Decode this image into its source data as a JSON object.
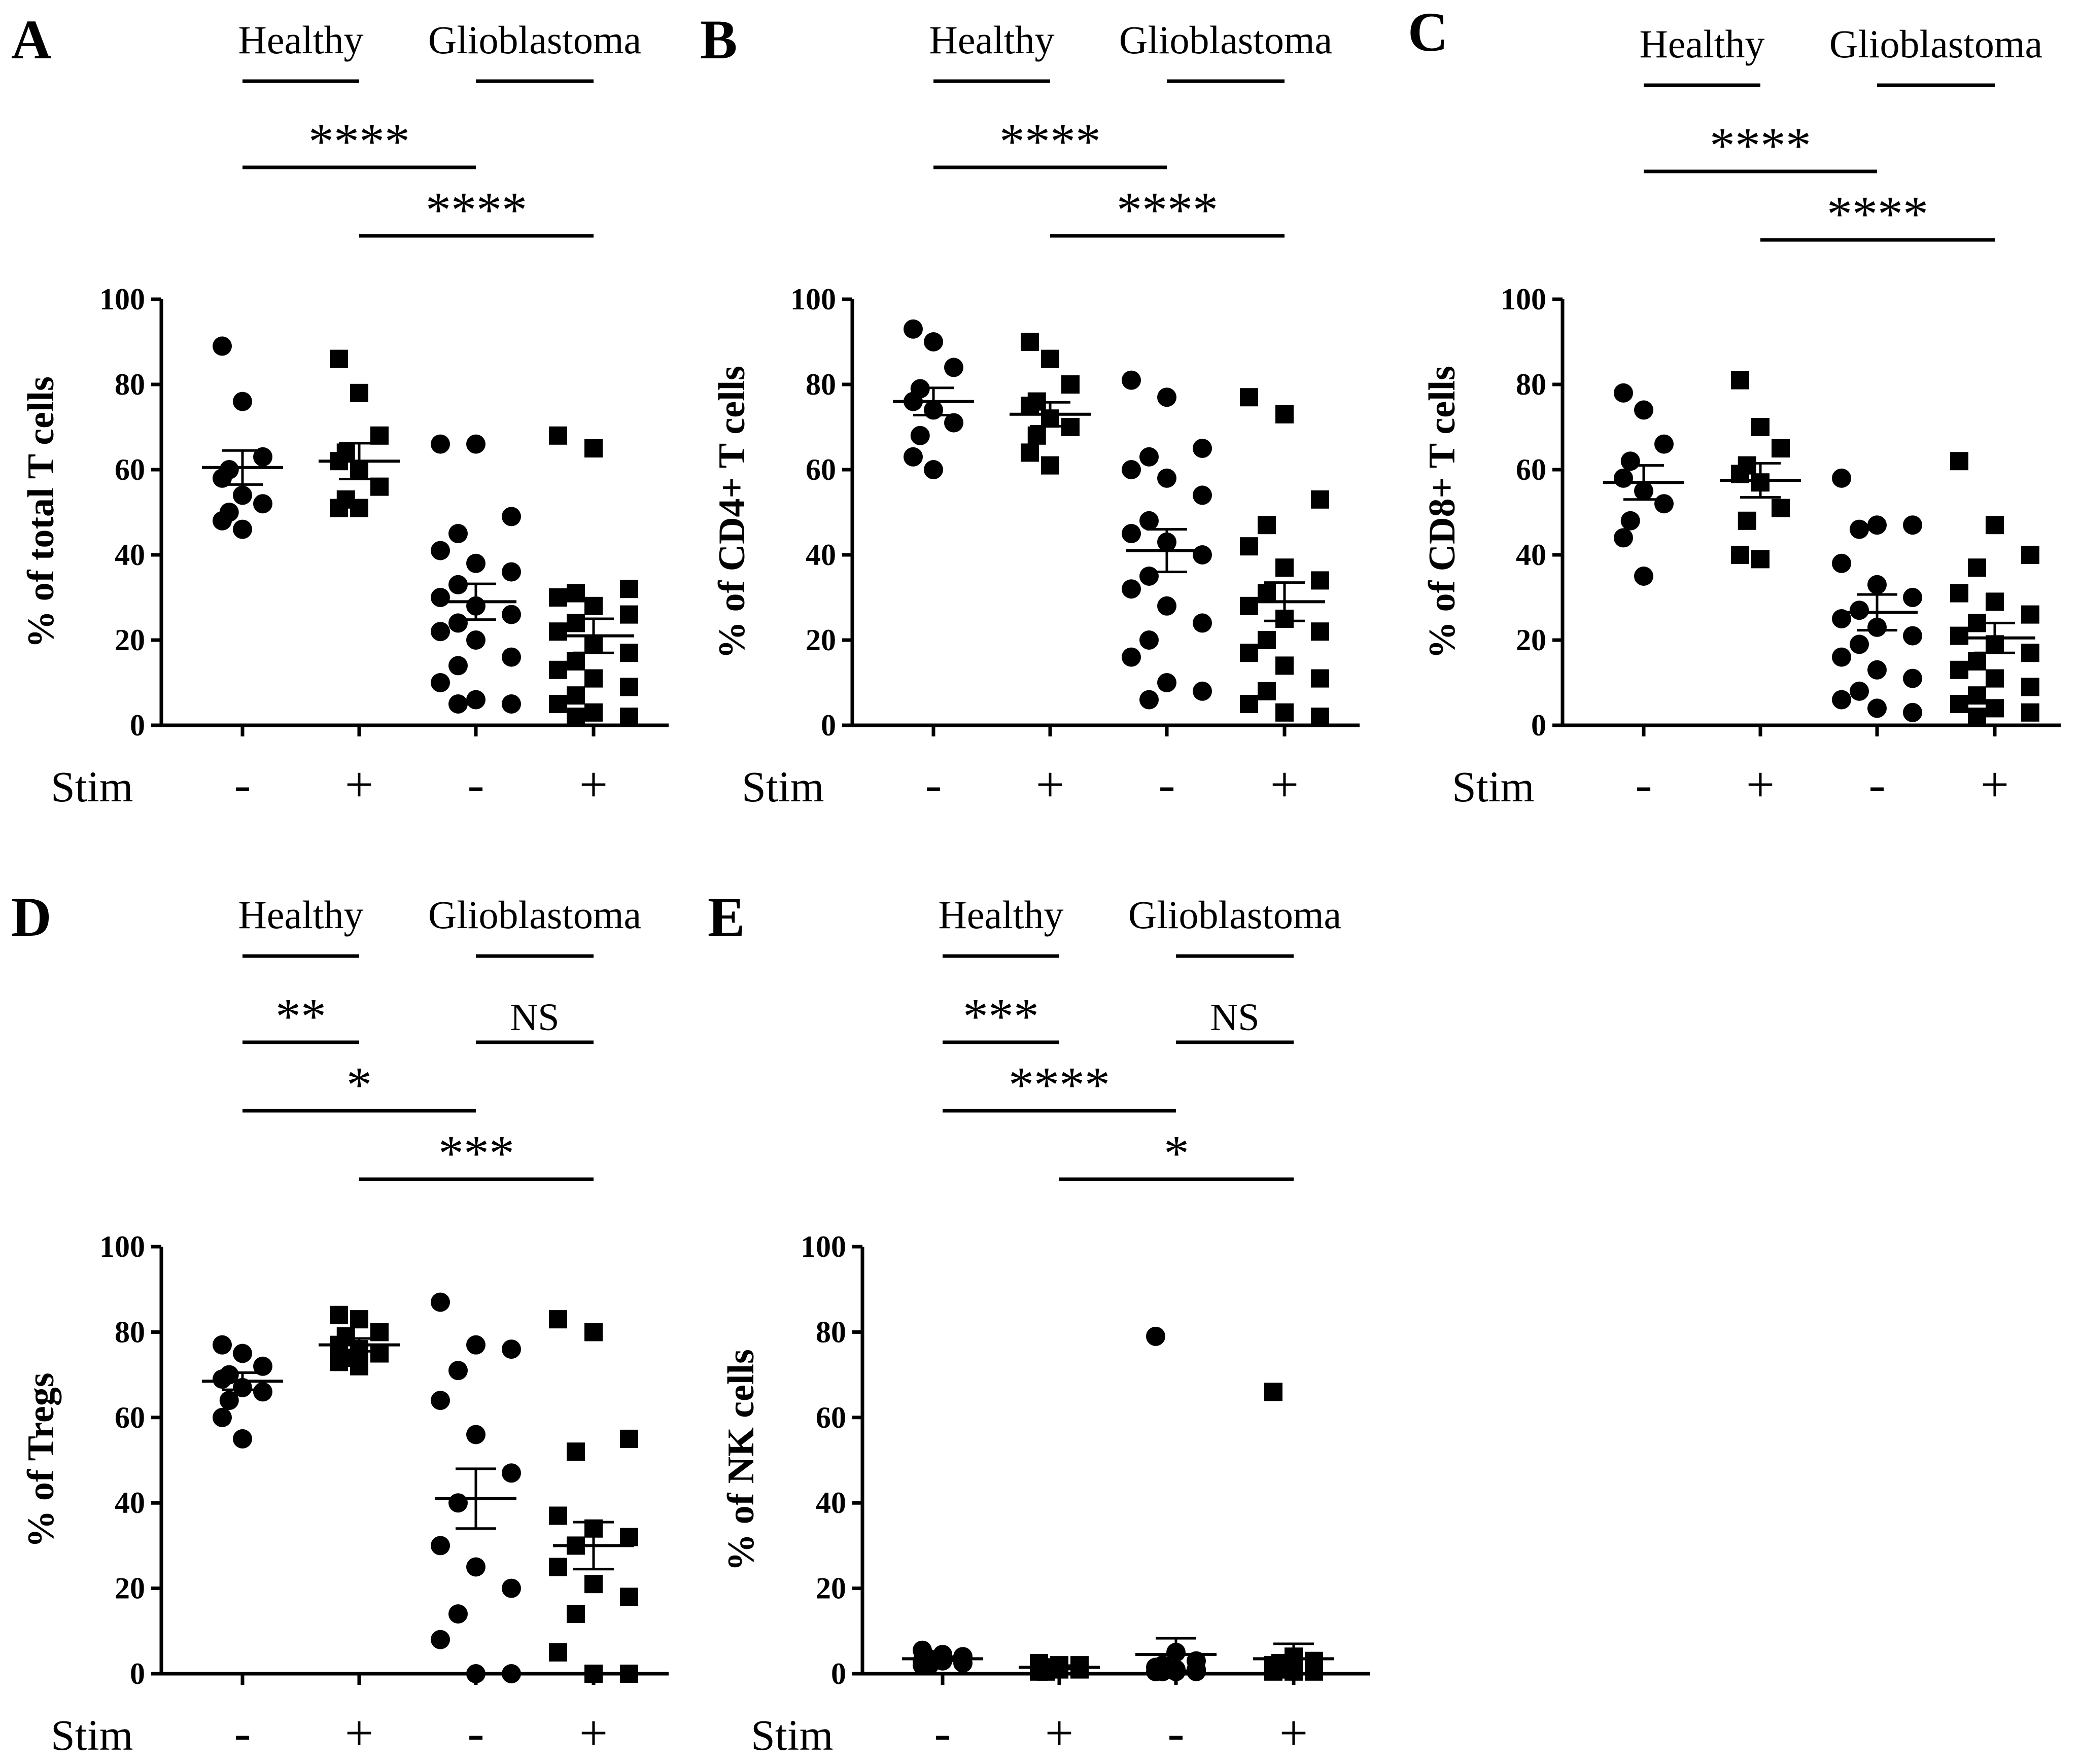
{
  "figure": {
    "y_ticks": [
      "0",
      "20",
      "40",
      "60",
      "80",
      "100"
    ],
    "stim_label": "Stim",
    "stim_values": [
      "-",
      "+",
      "-",
      "+"
    ],
    "group_labels": [
      "Healthy",
      "Glioblastoma"
    ]
  },
  "chart_data": [
    {
      "panel": "A",
      "type": "scatter",
      "ylabel": "% of total T cells",
      "ylim": [
        0,
        100
      ],
      "categories": [
        "Healthy -",
        "Healthy +",
        "Glioblastoma -",
        "Glioblastoma +"
      ],
      "comparisons": [
        {
          "label": "****",
          "from": 0,
          "to": 2
        },
        {
          "label": "****",
          "from": 1,
          "to": 3
        }
      ],
      "series": [
        {
          "name": "Healthy, Stim -",
          "marker": "circle",
          "mean": 60.5,
          "sem": 4.0,
          "values": [
            89,
            76,
            63,
            60,
            58,
            54,
            52,
            50,
            48,
            46
          ]
        },
        {
          "name": "Healthy, Stim +",
          "marker": "square",
          "mean": 62,
          "sem": 4.2,
          "values": [
            86,
            78,
            68,
            64,
            62,
            60,
            56,
            53,
            51,
            51
          ]
        },
        {
          "name": "Glioblastoma, Stim -",
          "marker": "circle",
          "mean": 29,
          "sem": 4.2,
          "values": [
            66,
            66,
            49,
            45,
            41,
            38,
            36,
            33,
            30,
            28,
            26,
            24,
            22,
            20,
            16,
            14,
            10,
            6,
            5,
            5
          ]
        },
        {
          "name": "Glioblastoma, Stim +",
          "marker": "square",
          "mean": 21,
          "sem": 4.0,
          "values": [
            68,
            65,
            32,
            31,
            30,
            28,
            26,
            24,
            22,
            19,
            17,
            15,
            13,
            11,
            9,
            7,
            5,
            3,
            2,
            2
          ]
        }
      ]
    },
    {
      "panel": "B",
      "type": "scatter",
      "ylabel": "% of CD4+ T cells",
      "ylim": [
        0,
        100
      ],
      "categories": [
        "Healthy -",
        "Healthy +",
        "Glioblastoma -",
        "Glioblastoma +"
      ],
      "comparisons": [
        {
          "label": "****",
          "from": 0,
          "to": 2
        },
        {
          "label": "****",
          "from": 1,
          "to": 3
        }
      ],
      "series": [
        {
          "name": "Healthy, Stim -",
          "marker": "circle",
          "mean": 76,
          "sem": 3.2,
          "values": [
            93,
            90,
            84,
            79,
            76,
            74,
            71,
            68,
            63,
            60
          ]
        },
        {
          "name": "Healthy, Stim +",
          "marker": "square",
          "mean": 73,
          "sem": 2.8,
          "values": [
            90,
            86,
            80,
            76,
            75,
            72,
            70,
            68,
            64,
            61
          ]
        },
        {
          "name": "Glioblastoma, Stim -",
          "marker": "circle",
          "mean": 41,
          "sem": 5.0,
          "values": [
            81,
            77,
            65,
            63,
            60,
            58,
            54,
            48,
            45,
            43,
            40,
            35,
            32,
            28,
            24,
            20,
            16,
            10,
            8,
            6
          ]
        },
        {
          "name": "Glioblastoma, Stim +",
          "marker": "square",
          "mean": 29,
          "sem": 4.5,
          "values": [
            77,
            73,
            53,
            47,
            42,
            37,
            34,
            31,
            28,
            25,
            22,
            20,
            17,
            14,
            11,
            8,
            5,
            3,
            2
          ]
        }
      ]
    },
    {
      "panel": "C",
      "type": "scatter",
      "ylabel": "% of CD8+ T cells",
      "ylim": [
        0,
        100
      ],
      "categories": [
        "Healthy -",
        "Healthy +",
        "Glioblastoma -",
        "Glioblastoma +"
      ],
      "comparisons": [
        {
          "label": "****",
          "from": 0,
          "to": 2
        },
        {
          "label": "****",
          "from": 1,
          "to": 3
        }
      ],
      "series": [
        {
          "name": "Healthy, Stim -",
          "marker": "circle",
          "mean": 57,
          "sem": 4.0,
          "values": [
            78,
            74,
            66,
            62,
            58,
            55,
            52,
            48,
            44,
            35
          ]
        },
        {
          "name": "Healthy, Stim +",
          "marker": "square",
          "mean": 57.5,
          "sem": 4.0,
          "values": [
            81,
            70,
            65,
            61,
            59,
            57,
            51,
            48,
            40,
            39
          ]
        },
        {
          "name": "Glioblastoma, Stim -",
          "marker": "circle",
          "mean": 26.5,
          "sem": 4.2,
          "values": [
            58,
            47,
            47,
            46,
            38,
            33,
            30,
            27,
            25,
            23,
            21,
            19,
            16,
            13,
            11,
            8,
            6,
            4,
            3
          ]
        },
        {
          "name": "Glioblastoma, Stim +",
          "marker": "square",
          "mean": 20.5,
          "sem": 3.5,
          "values": [
            62,
            47,
            40,
            37,
            31,
            29,
            26,
            24,
            21,
            19,
            17,
            15,
            13,
            11,
            9,
            7,
            5,
            4,
            3,
            2
          ]
        }
      ]
    },
    {
      "panel": "D",
      "type": "scatter",
      "ylabel": "% of Tregs",
      "ylim": [
        0,
        100
      ],
      "categories": [
        "Healthy -",
        "Healthy +",
        "Glioblastoma -",
        "Glioblastoma +"
      ],
      "comparisons": [
        {
          "label": "**",
          "from": 0,
          "to": 1
        },
        {
          "label": "NS",
          "from": 2,
          "to": 3
        },
        {
          "label": "*",
          "from": 0,
          "to": 2
        },
        {
          "label": "***",
          "from": 1,
          "to": 3
        }
      ],
      "series": [
        {
          "name": "Healthy, Stim -",
          "marker": "circle",
          "mean": 68.5,
          "sem": 2.0,
          "values": [
            77,
            75,
            72,
            70,
            69,
            67,
            66,
            64,
            60,
            55
          ]
        },
        {
          "name": "Healthy, Stim +",
          "marker": "square",
          "mean": 77,
          "sem": 1.5,
          "values": [
            84,
            83,
            80,
            79,
            77,
            76,
            75,
            74,
            73,
            72
          ]
        },
        {
          "name": "Glioblastoma, Stim -",
          "marker": "circle",
          "mean": 41,
          "sem": 7.0,
          "values": [
            87,
            77,
            76,
            71,
            64,
            56,
            47,
            40,
            30,
            25,
            20,
            14,
            8,
            0,
            0
          ]
        },
        {
          "name": "Glioblastoma, Stim +",
          "marker": "square",
          "mean": 30,
          "sem": 5.5,
          "values": [
            83,
            80,
            55,
            52,
            37,
            34,
            32,
            30,
            25,
            21,
            18,
            14,
            5,
            0,
            0
          ]
        }
      ]
    },
    {
      "panel": "E",
      "type": "scatter",
      "ylabel": "% of NK cells",
      "ylim": [
        0,
        100
      ],
      "categories": [
        "Healthy -",
        "Healthy +",
        "Glioblastoma -",
        "Glioblastoma +"
      ],
      "comparisons": [
        {
          "label": "***",
          "from": 0,
          "to": 1
        },
        {
          "label": "NS",
          "from": 2,
          "to": 3
        },
        {
          "label": "****",
          "from": 0,
          "to": 2
        },
        {
          "label": "*",
          "from": 1,
          "to": 3
        }
      ],
      "series": [
        {
          "name": "Healthy, Stim -",
          "marker": "circle",
          "mean": 3.5,
          "sem": 0.5,
          "values": [
            5.5,
            4.5,
            4,
            3.5,
            3,
            3,
            2.5,
            2,
            2
          ]
        },
        {
          "name": "Healthy, Stim +",
          "marker": "square",
          "mean": 1.5,
          "sem": 0.4,
          "values": [
            2.5,
            2,
            2,
            1.5,
            1,
            1,
            1,
            0.5,
            0.5
          ]
        },
        {
          "name": "Glioblastoma, Stim -",
          "marker": "circle",
          "mean": 4.5,
          "sem": 3.8,
          "values": [
            79,
            5,
            3,
            2,
            1.5,
            1,
            1,
            0.5,
            0.5,
            0.5,
            0.5
          ]
        },
        {
          "name": "Glioblastoma, Stim +",
          "marker": "square",
          "mean": 3.5,
          "sem": 3.5,
          "values": [
            66,
            4,
            3,
            2.5,
            2,
            1.5,
            1,
            1,
            0.5,
            0.5,
            0.5
          ]
        }
      ]
    }
  ]
}
